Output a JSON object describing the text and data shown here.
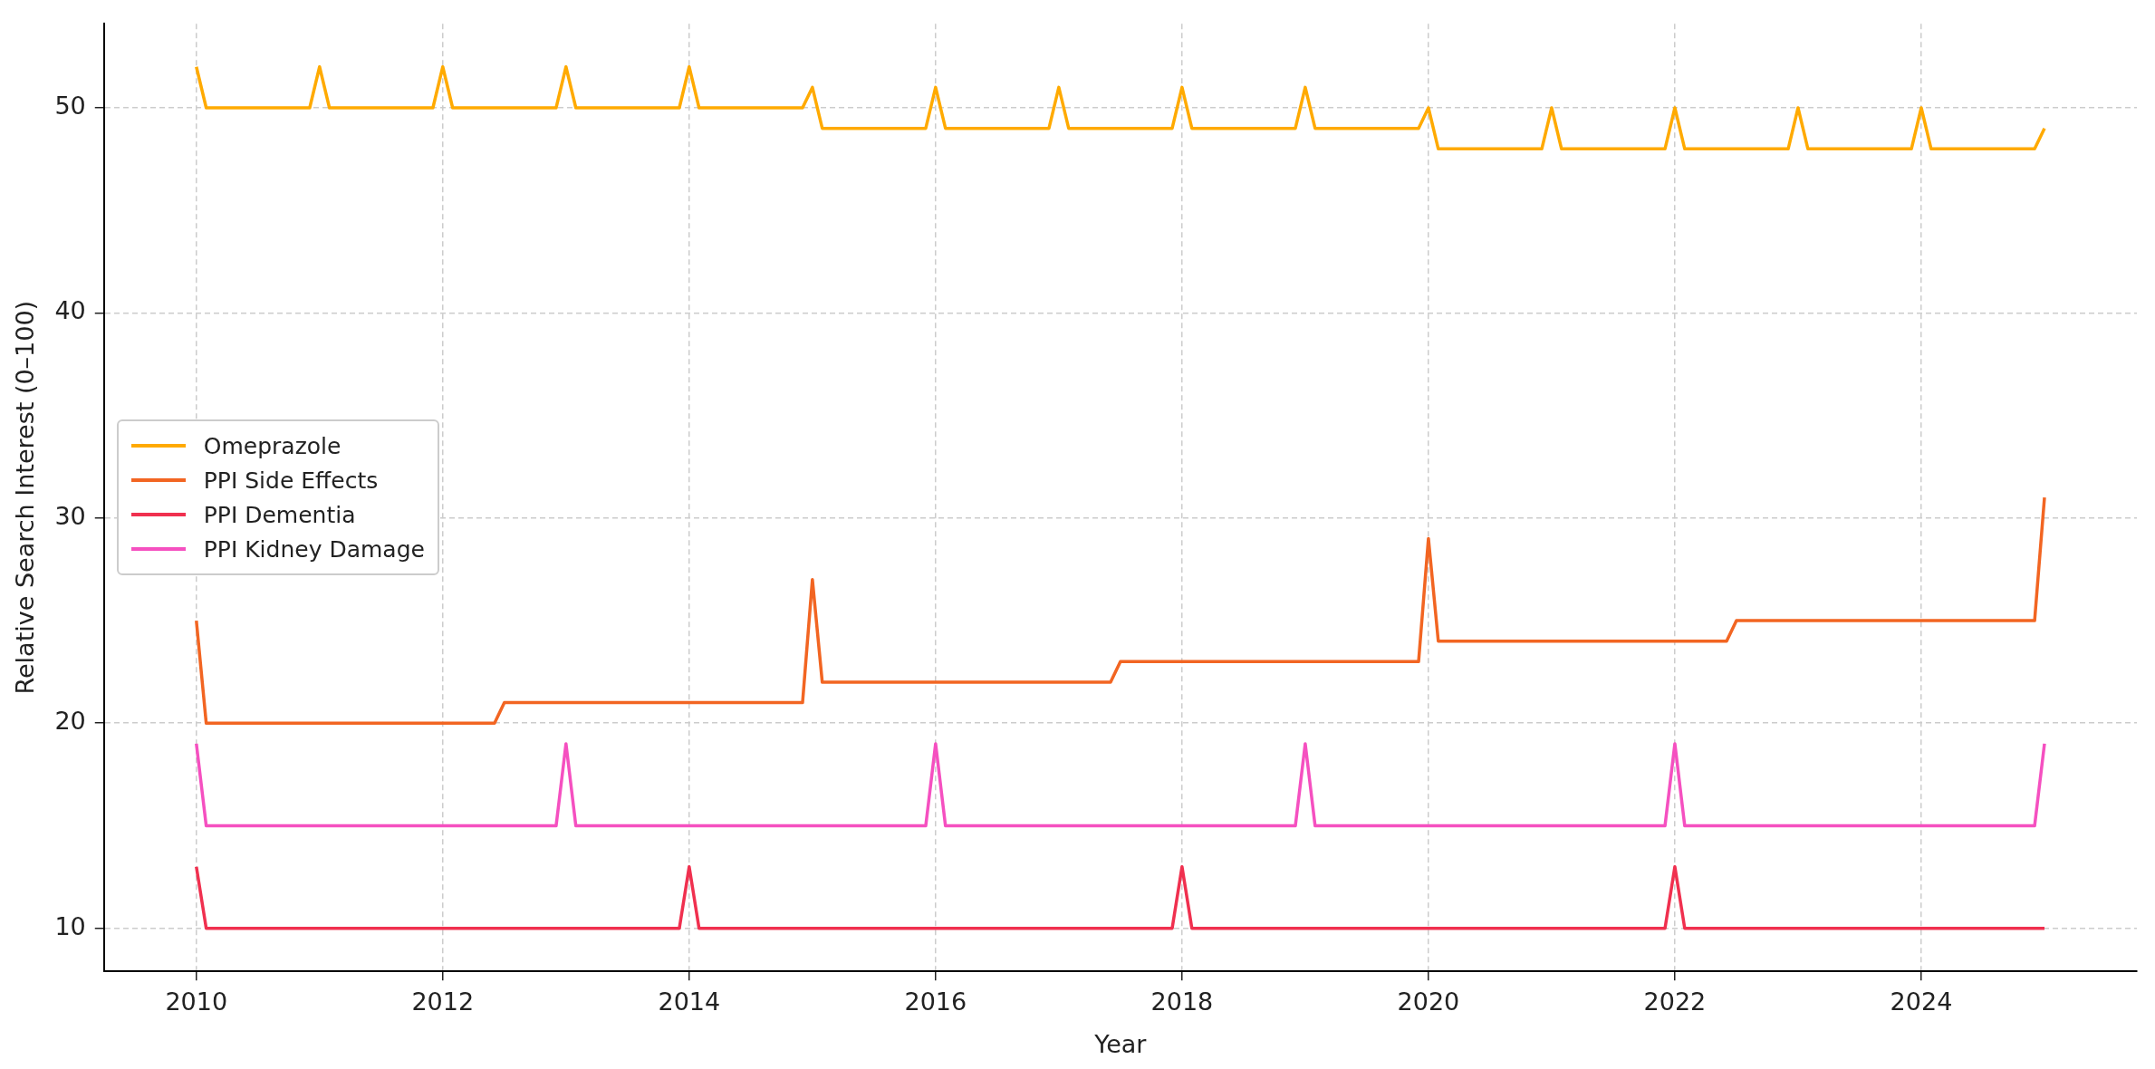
{
  "chart_data": {
    "type": "line",
    "xlabel": "Year",
    "ylabel": "Relative Search Interest (0–100)",
    "xlim": [
      2009.25,
      2025.75
    ],
    "xticks": [
      2010,
      2012,
      2014,
      2016,
      2018,
      2020,
      2022,
      2024
    ],
    "ylim": [
      7.9,
      54.1
    ],
    "yticks": [
      10,
      20,
      30,
      40,
      50
    ],
    "grid": true,
    "legend": "left",
    "marker": "none",
    "line_style": "solid",
    "series": [
      {
        "name": "Omeprazole",
        "color": "#ffaa00",
        "x": [
          2010,
          2010.08,
          2010.92,
          2011,
          2011.08,
          2011.92,
          2012,
          2012.08,
          2012.92,
          2013,
          2013.08,
          2013.92,
          2014,
          2014.08,
          2014.92,
          2015,
          2015.08,
          2015.92,
          2016,
          2016.08,
          2016.92,
          2017,
          2017.08,
          2017.92,
          2018,
          2018.08,
          2018.92,
          2019,
          2019.08,
          2019.92,
          2020,
          2020.08,
          2020.92,
          2021,
          2021.08,
          2021.92,
          2022,
          2022.08,
          2022.92,
          2023,
          2023.08,
          2023.92,
          2024,
          2024.08,
          2024.92,
          2025
        ],
        "values": [
          52,
          50,
          50,
          52,
          50,
          50,
          52,
          50,
          50,
          52,
          50,
          50,
          52,
          50,
          50,
          51,
          49,
          49,
          51,
          49,
          49,
          51,
          49,
          49,
          51,
          49,
          49,
          51,
          49,
          49,
          50,
          48,
          48,
          50,
          48,
          48,
          50,
          48,
          48,
          50,
          48,
          48,
          50,
          48,
          48,
          49
        ]
      },
      {
        "name": "PPI Side Effects",
        "color": "#f26522",
        "x": [
          2010,
          2010.08,
          2012.42,
          2012.5,
          2014.92,
          2015,
          2015.08,
          2017.42,
          2017.5,
          2019.92,
          2020,
          2020.08,
          2022.42,
          2022.5,
          2024.92,
          2025
        ],
        "values": [
          25,
          20,
          20,
          21,
          21,
          27,
          22,
          22,
          23,
          23,
          29,
          24,
          24,
          25,
          25,
          31
        ]
      },
      {
        "name": "PPI Dementia",
        "color": "#f0304f",
        "x": [
          2010,
          2010.08,
          2013.92,
          2014,
          2014.08,
          2017.92,
          2018,
          2018.08,
          2021.92,
          2022,
          2022.08,
          2025
        ],
        "values": [
          13,
          10,
          10,
          13,
          10,
          10,
          13,
          10,
          10,
          13,
          10,
          10
        ]
      },
      {
        "name": "PPI Kidney Damage",
        "color": "#f550c0",
        "x": [
          2010,
          2010.08,
          2012.92,
          2013,
          2013.08,
          2015.92,
          2016,
          2016.08,
          2018.92,
          2019,
          2019.08,
          2021.92,
          2022,
          2022.08,
          2024.92,
          2025
        ],
        "values": [
          19,
          15,
          15,
          19,
          15,
          15,
          19,
          15,
          15,
          19,
          15,
          15,
          19,
          15,
          15,
          19
        ]
      }
    ]
  }
}
